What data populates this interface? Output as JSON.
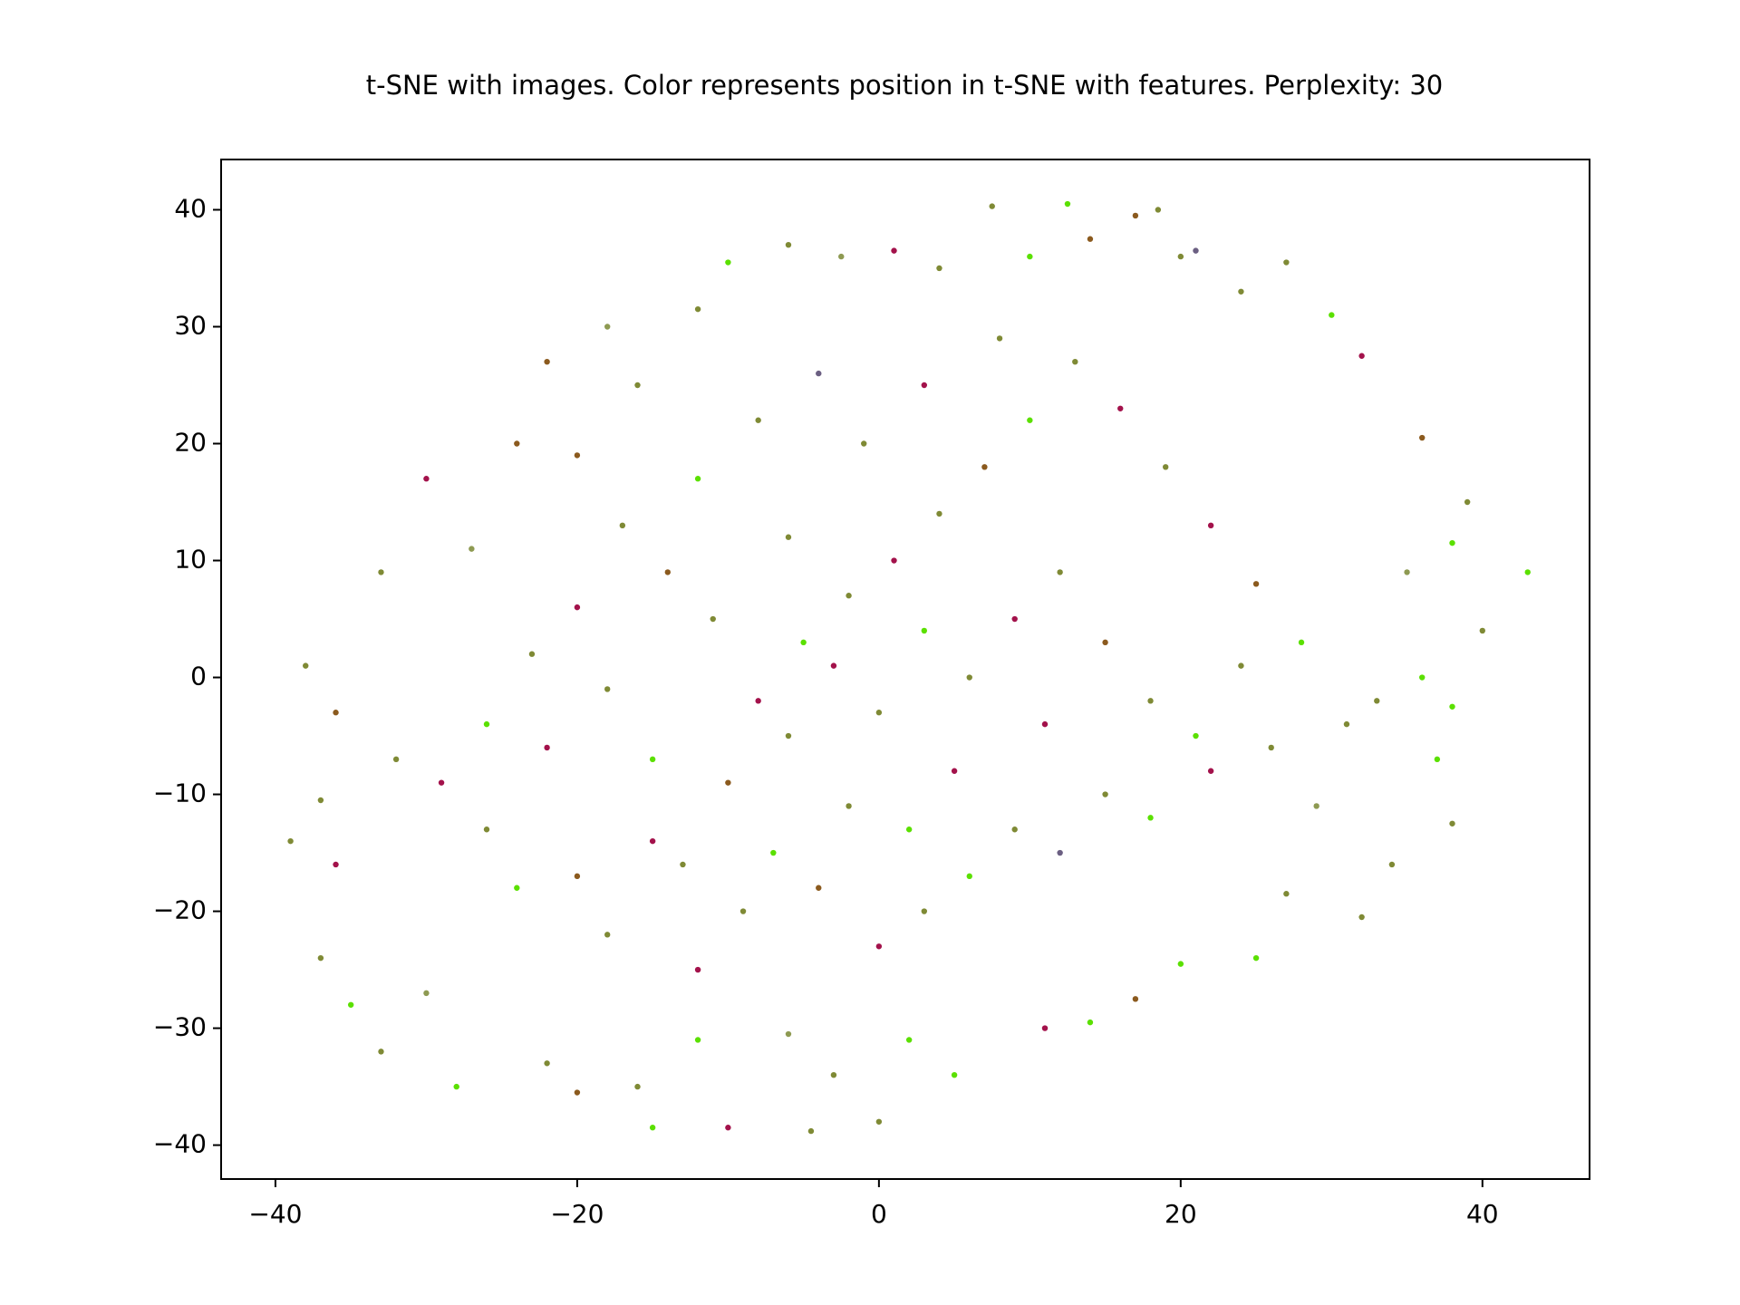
{
  "chart_data": {
    "type": "scatter",
    "title": "t-SNE with images. Color represents position in t-SNE with features. Perplexity: 30",
    "xlim": [
      -43.6,
      47.1
    ],
    "ylim": [
      -42.9,
      44.3
    ],
    "xticks": [
      {
        "value": -40,
        "label": "−40"
      },
      {
        "value": -20,
        "label": "−20"
      },
      0,
      20,
      40
    ],
    "yticks": [
      {
        "value": -40,
        "label": "−40"
      },
      {
        "value": -30,
        "label": "−30"
      },
      {
        "value": -20,
        "label": "−20"
      },
      {
        "value": -10,
        "label": "−10"
      },
      0,
      10,
      20,
      30,
      40
    ],
    "grid": false,
    "series": [
      {
        "x": [
          43,
          -39,
          12.5,
          7.5,
          17,
          18.5,
          -15,
          -4.5,
          -10,
          0,
          40,
          38,
          -36,
          -38,
          -30,
          -33,
          -27,
          -24,
          -22,
          -18,
          -12,
          -10,
          -6,
          -2.5,
          1,
          4,
          10,
          14,
          20,
          21,
          24,
          27,
          30,
          32,
          36,
          39,
          38,
          35,
          36,
          33,
          37,
          38,
          34,
          32,
          27,
          25,
          20,
          17,
          14,
          11,
          5,
          2,
          -3,
          -6,
          -12,
          -16,
          -20,
          -22,
          -28,
          -30,
          -33,
          -35,
          -37,
          -36,
          -37,
          -32,
          -29,
          -26,
          -24,
          -20,
          -18,
          -15,
          -12,
          -9,
          -7,
          -4,
          -2,
          0,
          3,
          6,
          9,
          12,
          15,
          18,
          22,
          26,
          29,
          31,
          28,
          25,
          22,
          19,
          16,
          13,
          10,
          7,
          4,
          1,
          -2,
          -5,
          -8,
          -11,
          -14,
          -17,
          -20,
          -23,
          -26,
          -22,
          -18,
          -15,
          -10,
          -6,
          -3,
          0,
          3,
          6,
          9,
          12,
          15,
          18,
          21,
          24,
          8,
          3,
          -1,
          -4,
          -8,
          -12,
          -16,
          -20,
          5,
          -6,
          11,
          -13,
          2
        ],
        "y": [
          9,
          -14,
          40.5,
          40.3,
          39.5,
          40,
          -38.5,
          -38.8,
          -38.5,
          -38,
          4,
          -2.5,
          -3,
          1,
          17,
          9,
          11,
          20,
          27,
          30,
          31.5,
          35.5,
          37,
          36,
          36.5,
          35,
          36,
          37.5,
          36,
          36.5,
          33,
          35.5,
          31,
          27.5,
          20.5,
          15,
          11.5,
          9,
          0,
          -2,
          -7,
          -12.5,
          -16,
          -20.5,
          -18.5,
          -24,
          -24.5,
          -27.5,
          -29.5,
          -30,
          -34,
          -31,
          -34,
          -30.5,
          -31,
          -35,
          -35.5,
          -33,
          -35,
          -27,
          -32,
          -28,
          -24,
          -16,
          -10.5,
          -7,
          -9,
          -13,
          -18,
          -17,
          -22,
          -14,
          -25,
          -20,
          -15,
          -18,
          -11,
          -23,
          -20,
          -17,
          -13,
          -15,
          -10,
          -12,
          -8,
          -6,
          -11,
          -4,
          3,
          8,
          13,
          18,
          23,
          27,
          22,
          18,
          14,
          10,
          7,
          3,
          -2,
          5,
          9,
          13,
          6,
          2,
          -4,
          -6,
          -1,
          -7,
          -9,
          -5,
          1,
          -3,
          4,
          0,
          5,
          9,
          3,
          -2,
          -5,
          1,
          29,
          25,
          20,
          26,
          22,
          17,
          25,
          19,
          -8,
          12,
          -4,
          -16,
          -13
        ],
        "colors": [
          "#5be000",
          "#7f8a35",
          "#5be000",
          "#7f8a35",
          "#8b5a1e",
          "#7f8a35",
          "#5be000",
          "#7f8a35",
          "#a3124b",
          "#7f8a35",
          "#7f8a35",
          "#5be000",
          "#8b5a1e",
          "#7f8a35",
          "#a3124b",
          "#7f8a35",
          "#8e9a52",
          "#8b5a1e",
          "#8b5a1e",
          "#8e9a52",
          "#7f8a35",
          "#5be000",
          "#7f8a35",
          "#8e9a52",
          "#a3124b",
          "#7f8a35",
          "#5be000",
          "#8b5a1e",
          "#7f8a35",
          "#6b5f82",
          "#7f8a35",
          "#7f8a35",
          "#5be000",
          "#a3124b",
          "#8b5a1e",
          "#7f8a35",
          "#5be000",
          "#8e9a52",
          "#5be000",
          "#7f8a35",
          "#5be000",
          "#7f8a35",
          "#7f8a35",
          "#7f8a35",
          "#7f8a35",
          "#5be000",
          "#5be000",
          "#8b5a1e",
          "#5be000",
          "#a3124b",
          "#5be000",
          "#5be000",
          "#7f8a35",
          "#8e9a52",
          "#5be000",
          "#7f8a35",
          "#8b5a1e",
          "#7f8a35",
          "#5be000",
          "#8e9a52",
          "#7f8a35",
          "#5be000",
          "#7f8a35",
          "#a3124b",
          "#7f8a35",
          "#7f8a35",
          "#a3124b",
          "#7f8a35",
          "#5be000",
          "#8b5a1e",
          "#7f8a35",
          "#a3124b",
          "#a3124b",
          "#7f8a35",
          "#5be000",
          "#8b5a1e",
          "#7f8a35",
          "#a3124b",
          "#7f8a35",
          "#5be000",
          "#7f8a35",
          "#6b5f82",
          "#7f8a35",
          "#5be000",
          "#a3124b",
          "#7f8a35",
          "#8e9a52",
          "#7f8a35",
          "#5be000",
          "#8b5a1e",
          "#a3124b",
          "#7f8a35",
          "#a3124b",
          "#7f8a35",
          "#5be000",
          "#8b5a1e",
          "#7f8a35",
          "#a3124b",
          "#7f8a35",
          "#5be000",
          "#a3124b",
          "#7f8a35",
          "#8b5a1e",
          "#7f8a35",
          "#a3124b",
          "#7f8a35",
          "#5be000",
          "#a3124b",
          "#7f8a35",
          "#5be000",
          "#8b5a1e",
          "#7f8a35",
          "#a3124b",
          "#7f8a35",
          "#5be000",
          "#7f8a35",
          "#a3124b",
          "#7f8a35",
          "#8b5a1e",
          "#7f8a35",
          "#5be000",
          "#7f8a35",
          "#7f8a35",
          "#a3124b",
          "#7f8a35",
          "#6b5f82",
          "#7f8a35",
          "#5be000",
          "#7f8a35",
          "#8b5a1e",
          "#a3124b",
          "#7f8a35",
          "#a3124b",
          "#7f8a35",
          "#5be000"
        ]
      }
    ]
  }
}
